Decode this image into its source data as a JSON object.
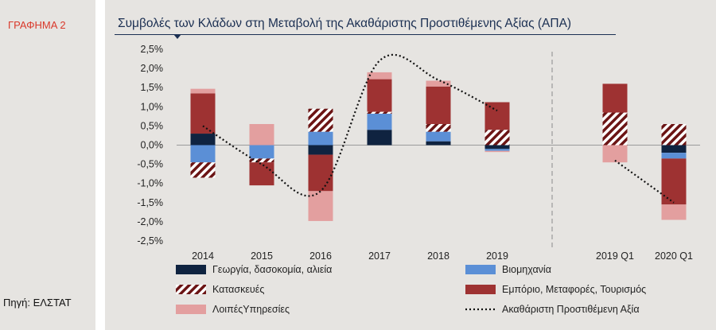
{
  "sidebar": {
    "chart_label": "ΓΡΑΦΗΜΑ 2",
    "source": "Πηγή: ΕΛΣΤΑΤ"
  },
  "colors": {
    "navy": "#0f2340",
    "blue": "#5b8fd6",
    "hatch": "#6b1414",
    "maroon": "#9e3232",
    "pink": "#e39f9f",
    "line": "#111111",
    "label_red": "#d9392b",
    "title": "#1b2f52"
  },
  "chart_data": {
    "type": "bar",
    "stacked": true,
    "title": "Συμβολές των Κλάδων στη Μεταβολή της Ακαθάριστης Προστιθέμενης Αξίας (ΑΠΑ)",
    "categories": [
      "2014",
      "2015",
      "2016",
      "2017",
      "2018",
      "2019",
      "2019 Q1",
      "2020 Q1"
    ],
    "ylim": [
      -2.5,
      2.5
    ],
    "yticks": [
      "2,5%",
      "2,0%",
      "1,5%",
      "1,0%",
      "0,5%",
      "0,0%",
      "-0,5%",
      "-1,0%",
      "-1,5%",
      "-2,0%",
      "-2,5%"
    ],
    "yticks_values": [
      2.5,
      2.0,
      1.5,
      1.0,
      0.5,
      0.0,
      -0.5,
      -1.0,
      -1.5,
      -2.0,
      -2.5
    ],
    "separator_after_index": 5,
    "series": [
      {
        "name": "Γεωργία, δασοκομία, αλιεία",
        "color_key": "navy",
        "values": [
          0.3,
          0.0,
          -0.25,
          0.4,
          0.1,
          -0.1,
          0.0,
          -0.2
        ]
      },
      {
        "name": "Βιομηχανία",
        "color_key": "blue",
        "values": [
          -0.45,
          -0.35,
          0.35,
          0.42,
          0.25,
          -0.05,
          0.0,
          -0.15
        ]
      },
      {
        "name": "Κατασκευές",
        "color_key": "hatch",
        "values": [
          -0.4,
          -0.1,
          0.6,
          0.05,
          0.2,
          0.4,
          0.85,
          0.55
        ]
      },
      {
        "name": "Εμπόριο, Μεταφορές, Τουρισμός",
        "color_key": "maroon",
        "values": [
          1.05,
          -0.6,
          -0.95,
          0.85,
          0.98,
          0.72,
          0.75,
          -1.2
        ]
      },
      {
        "name": "ΛοιπέςΥπηρεσίες",
        "color_key": "pink",
        "values": [
          0.12,
          0.55,
          -0.78,
          0.18,
          0.15,
          -0.03,
          -0.45,
          -0.4
        ]
      }
    ],
    "line_series": {
      "name": "Ακαθάριστη Προστιθέμενη Αξία",
      "values": [
        0.5,
        -0.5,
        -1.2,
        2.2,
        1.7,
        0.9,
        -0.4,
        -1.5
      ]
    }
  }
}
